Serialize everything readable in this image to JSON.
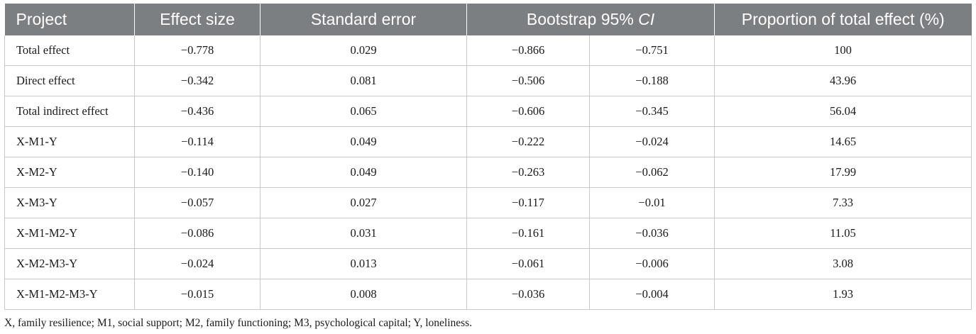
{
  "table": {
    "headers": {
      "project": "Project",
      "effect_size": "Effect size",
      "standard_error": "Standard error",
      "bootstrap_prefix": "Bootstrap 95% ",
      "bootstrap_ci": "CI",
      "proportion": "Proportion of total effect (%)"
    },
    "rows": [
      {
        "project": "Total effect",
        "effect_size": "−0.778",
        "se": "0.029",
        "ci_low": "−0.866",
        "ci_high": "−0.751",
        "proportion": "100"
      },
      {
        "project": "Direct effect",
        "effect_size": "−0.342",
        "se": "0.081",
        "ci_low": "−0.506",
        "ci_high": "−0.188",
        "proportion": "43.96"
      },
      {
        "project": "Total indirect effect",
        "effect_size": "−0.436",
        "se": "0.065",
        "ci_low": "−0.606",
        "ci_high": "−0.345",
        "proportion": "56.04"
      },
      {
        "project": "X-M1-Y",
        "effect_size": "−0.114",
        "se": "0.049",
        "ci_low": "−0.222",
        "ci_high": "−0.024",
        "proportion": "14.65"
      },
      {
        "project": "X-M2-Y",
        "effect_size": "−0.140",
        "se": "0.049",
        "ci_low": "−0.263",
        "ci_high": "−0.062",
        "proportion": "17.99"
      },
      {
        "project": "X-M3-Y",
        "effect_size": "−0.057",
        "se": "0.027",
        "ci_low": "−0.117",
        "ci_high": "−0.01",
        "proportion": "7.33"
      },
      {
        "project": "X-M1-M2-Y",
        "effect_size": "−0.086",
        "se": "0.031",
        "ci_low": "−0.161",
        "ci_high": "−0.036",
        "proportion": "11.05"
      },
      {
        "project": "X-M2-M3-Y",
        "effect_size": "−0.024",
        "se": "0.013",
        "ci_low": "−0.061",
        "ci_high": "−0.006",
        "proportion": "3.08"
      },
      {
        "project": "X-M1-M2-M3-Y",
        "effect_size": "−0.015",
        "se": "0.008",
        "ci_low": "−0.036",
        "ci_high": "−0.004",
        "proportion": "1.93"
      }
    ]
  },
  "footnote": "X, family resilience; M1, social support; M2, family functioning; M3, psychological capital; Y, loneliness.",
  "colors": {
    "header_background": "#7b7f82",
    "header_text": "#ffffff",
    "grid_line": "#c8c8c8"
  }
}
